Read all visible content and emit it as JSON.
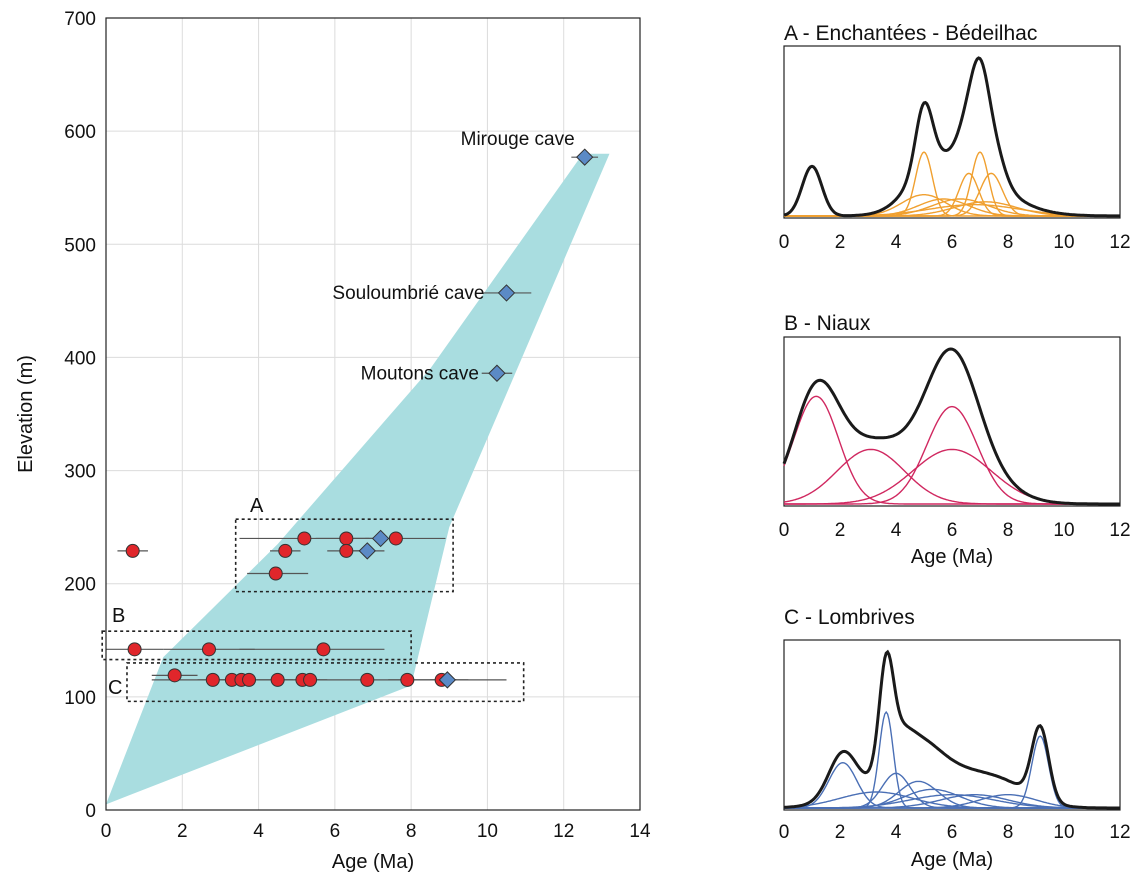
{
  "chart_data": [
    {
      "type": "scatter",
      "xlabel": "Age (Ma)",
      "ylabel": "Elevation (m)",
      "xlim": [
        0,
        14
      ],
      "ylim": [
        0,
        700
      ],
      "xticks": [
        "0",
        "2",
        "4",
        "6",
        "8",
        "10",
        "12",
        "14"
      ],
      "yticks": [
        "0",
        "100",
        "200",
        "300",
        "400",
        "500",
        "600",
        "700"
      ],
      "grid": true,
      "envelope_color": "#a9dde0",
      "envelope": [
        [
          0,
          5
        ],
        [
          1.5,
          135
        ],
        [
          4.5,
          235
        ],
        [
          8.5,
          390
        ],
        [
          12.5,
          580
        ],
        [
          13.2,
          580
        ],
        [
          9.0,
          250
        ],
        [
          8.0,
          110
        ]
      ],
      "caves": [
        {
          "label": "Mirouge cave",
          "x": 12.55,
          "y": 577,
          "xerr": [
            12.2,
            12.9
          ]
        },
        {
          "label": "Souloumbrié cave",
          "x": 10.5,
          "y": 457,
          "xerr": [
            9.9,
            11.15
          ]
        },
        {
          "label": "Moutons cave",
          "x": 10.25,
          "y": 386,
          "xerr": [
            9.85,
            10.65
          ]
        }
      ],
      "circles_color": "#e0262b",
      "diamonds_color": "#5b8ac6",
      "circles": [
        {
          "x": 0.7,
          "y": 229,
          "xerr": [
            0.3,
            1.1
          ]
        },
        {
          "x": 4.7,
          "y": 229,
          "xerr": [
            4.3,
            5.1
          ]
        },
        {
          "x": 5.2,
          "y": 240,
          "xerr": [
            3.5,
            6.9
          ]
        },
        {
          "x": 6.3,
          "y": 240,
          "xerr": [
            5.5,
            7.1
          ]
        },
        {
          "x": 6.3,
          "y": 229,
          "xerr": [
            5.8,
            6.8
          ]
        },
        {
          "x": 7.6,
          "y": 240,
          "xerr": [
            6.5,
            8.9
          ]
        },
        {
          "x": 4.45,
          "y": 209,
          "xerr": [
            3.7,
            5.3
          ]
        },
        {
          "x": 0.75,
          "y": 142,
          "xerr": [
            0.0,
            1.5
          ]
        },
        {
          "x": 2.7,
          "y": 142,
          "xerr": [
            1.5,
            3.9
          ]
        },
        {
          "x": 5.7,
          "y": 142,
          "xerr": [
            3.5,
            7.3
          ]
        },
        {
          "x": 1.8,
          "y": 119,
          "xerr": [
            1.2,
            2.4
          ]
        },
        {
          "x": 2.8,
          "y": 115,
          "xerr": [
            2.4,
            3.2
          ]
        },
        {
          "x": 3.3,
          "y": 115,
          "xerr": [
            2.9,
            3.7
          ]
        },
        {
          "x": 3.55,
          "y": 115,
          "xerr": [
            3.2,
            3.9
          ]
        },
        {
          "x": 3.75,
          "y": 115,
          "xerr": [
            3.4,
            4.1
          ]
        },
        {
          "x": 4.5,
          "y": 115,
          "xerr": [
            4.1,
            4.9
          ]
        },
        {
          "x": 5.15,
          "y": 115,
          "xerr": [
            4.7,
            5.6
          ]
        },
        {
          "x": 5.35,
          "y": 115,
          "xerr": [
            5.0,
            5.8
          ]
        },
        {
          "x": 6.85,
          "y": 115,
          "xerr": [
            1.2,
            9.5
          ]
        },
        {
          "x": 7.9,
          "y": 115,
          "xerr": [
            7.4,
            8.4
          ]
        },
        {
          "x": 8.8,
          "y": 115,
          "xerr": [
            8.4,
            9.2
          ]
        }
      ],
      "diamonds": [
        {
          "x": 7.2,
          "y": 240,
          "xerr": [
            6.8,
            7.6
          ]
        },
        {
          "x": 6.85,
          "y": 229,
          "xerr": [
            6.4,
            7.3
          ]
        },
        {
          "x": 8.95,
          "y": 115,
          "xerr": [
            8.5,
            10.5
          ]
        }
      ],
      "boxes": [
        {
          "label": "A",
          "x0": 3.4,
          "x1": 9.1,
          "y0": 193,
          "y1": 257
        },
        {
          "label": "B",
          "x0": -0.1,
          "x1": 8.0,
          "y0": 133,
          "y1": 158
        },
        {
          "label": "C",
          "x0": 0.55,
          "x1": 10.95,
          "y0": 96,
          "y1": 130
        }
      ]
    },
    {
      "type": "line",
      "title": "A - Enchantées - Bédeilhac",
      "xlim": [
        0,
        12
      ],
      "xticks": [
        "0",
        "2",
        "4",
        "6",
        "8",
        "10",
        "12"
      ],
      "component_color": "#f0a030",
      "sum_color": "#1a1a1a",
      "components": [
        {
          "mu": 5.0,
          "sigma": 0.3,
          "amp": 0.45
        },
        {
          "mu": 7.0,
          "sigma": 0.3,
          "amp": 0.45
        },
        {
          "mu": 6.6,
          "sigma": 0.35,
          "amp": 0.3
        },
        {
          "mu": 7.4,
          "sigma": 0.4,
          "amp": 0.3
        },
        {
          "mu": 5.0,
          "sigma": 0.8,
          "amp": 0.15
        },
        {
          "mu": 5.7,
          "sigma": 0.9,
          "amp": 0.12
        },
        {
          "mu": 6.3,
          "sigma": 1.0,
          "amp": 0.12
        },
        {
          "mu": 7.2,
          "sigma": 1.1,
          "amp": 0.1
        },
        {
          "mu": 6.8,
          "sigma": 1.6,
          "amp": 0.08
        }
      ],
      "extra_sum": [
        {
          "mu": 1.0,
          "sigma": 0.35,
          "amp": 0.35
        }
      ]
    },
    {
      "type": "line",
      "title": "B - Niaux",
      "xlabel": "Age (Ma)",
      "xlim": [
        0,
        12
      ],
      "xticks": [
        "0",
        "2",
        "4",
        "6",
        "8",
        "10",
        "12"
      ],
      "component_color": "#d02860",
      "sum_color": "#1a1a1a",
      "components": [
        {
          "mu": 1.15,
          "sigma": 0.8,
          "amp": 0.73
        },
        {
          "mu": 6.0,
          "sigma": 0.9,
          "amp": 0.66
        },
        {
          "mu": 3.1,
          "sigma": 1.2,
          "amp": 0.37
        },
        {
          "mu": 6.0,
          "sigma": 1.4,
          "amp": 0.37
        }
      ],
      "extra_sum": []
    },
    {
      "type": "line",
      "title": "C - Lombrives",
      "xlabel": "Age (Ma)",
      "xlim": [
        0,
        12
      ],
      "xticks": [
        "0",
        "2",
        "4",
        "6",
        "8",
        "10",
        "12"
      ],
      "component_color": "#4a6fb5",
      "sum_color": "#1a1a1a",
      "components": [
        {
          "mu": 3.65,
          "sigma": 0.25,
          "amp": 0.36
        },
        {
          "mu": 9.15,
          "sigma": 0.3,
          "amp": 0.27
        },
        {
          "mu": 2.1,
          "sigma": 0.5,
          "amp": 0.17
        },
        {
          "mu": 4.0,
          "sigma": 0.5,
          "amp": 0.13
        },
        {
          "mu": 4.8,
          "sigma": 0.7,
          "amp": 0.1
        },
        {
          "mu": 5.3,
          "sigma": 1.0,
          "amp": 0.07
        },
        {
          "mu": 6.8,
          "sigma": 1.2,
          "amp": 0.05
        },
        {
          "mu": 8.0,
          "sigma": 1.0,
          "amp": 0.05
        },
        {
          "mu": 3.3,
          "sigma": 1.3,
          "amp": 0.06
        },
        {
          "mu": 6.0,
          "sigma": 1.5,
          "amp": 0.05
        }
      ],
      "extra_sum": []
    }
  ]
}
